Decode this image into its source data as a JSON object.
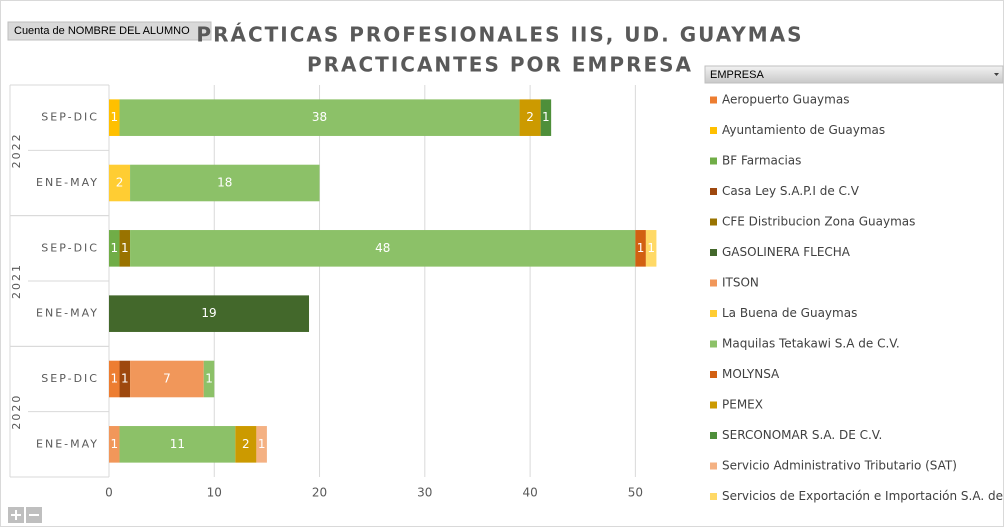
{
  "chart_data": {
    "type": "bar",
    "orientation": "horizontal",
    "stacked": true,
    "title": "PRÁCTICAS PROFESIONALES IIS, UD. GUAYMAS",
    "subtitle": "PRACTICANTES POR EMPRESA",
    "value_field": "Cuenta de NOMBRE DEL ALUMNO",
    "legend_title": "EMPRESA",
    "legend_position": "right",
    "grid": true,
    "groups": [
      {
        "label": "2022",
        "categories": [
          "SEP-DIC",
          "ENE-MAY"
        ]
      },
      {
        "label": "2021",
        "categories": [
          "SEP-DIC",
          "ENE-MAY"
        ]
      },
      {
        "label": "2020",
        "categories": [
          "SEP-DIC",
          "ENE-MAY"
        ]
      }
    ],
    "xlim": [
      0,
      55
    ],
    "xticks": [
      0,
      10,
      20,
      30,
      40,
      50
    ],
    "series": [
      {
        "name": "Aeropuerto Guaymas",
        "color": "#ED7D31",
        "values": [
          null,
          null,
          null,
          null,
          1,
          null
        ]
      },
      {
        "name": "Ayuntamiento de Guaymas",
        "color": "#FFC000",
        "values": [
          1,
          null,
          null,
          null,
          null,
          null
        ]
      },
      {
        "name": "BF Farmacias",
        "color": "#70AD47",
        "values": [
          null,
          null,
          1,
          null,
          null,
          null
        ]
      },
      {
        "name": "Casa Ley S.A.P.I de C.V",
        "color": "#9E480E",
        "values": [
          null,
          null,
          null,
          null,
          1,
          null
        ]
      },
      {
        "name": "CFE Distribucion Zona Guaymas",
        "color": "#997300",
        "values": [
          null,
          null,
          1,
          null,
          null,
          null
        ]
      },
      {
        "name": "GASOLINERA FLECHA",
        "color": "#43682B",
        "values": [
          null,
          null,
          null,
          19,
          null,
          null
        ]
      },
      {
        "name": "ITSON",
        "color": "#F1975A",
        "values": [
          null,
          null,
          null,
          null,
          7,
          1
        ]
      },
      {
        "name": "La Buena de Guaymas",
        "color": "#FFCD33",
        "values": [
          null,
          2,
          null,
          null,
          null,
          null
        ]
      },
      {
        "name": "Maquilas Tetakawi S.A de C.V.",
        "color": "#8CC168",
        "values": [
          38,
          18,
          48,
          null,
          1,
          11
        ]
      },
      {
        "name": "MOLYNSA",
        "color": "#D26012",
        "values": [
          null,
          null,
          1,
          null,
          null,
          null
        ]
      },
      {
        "name": "PEMEX",
        "color": "#CC9A00",
        "values": [
          2,
          null,
          null,
          null,
          null,
          2
        ]
      },
      {
        "name": "SERCONOMAR S.A. DE C.V.",
        "color": "#4E8F3A",
        "values": [
          1,
          null,
          null,
          null,
          null,
          null
        ]
      },
      {
        "name": "Servicio Administrativo Tributario (SAT)",
        "color": "#F4B183",
        "values": [
          null,
          null,
          null,
          null,
          null,
          1
        ]
      },
      {
        "name": "Servicios de Exportación e Importación S.A. de C.V",
        "color": "#FFD966",
        "values": [
          null,
          null,
          1,
          null,
          null,
          null
        ]
      }
    ]
  }
}
